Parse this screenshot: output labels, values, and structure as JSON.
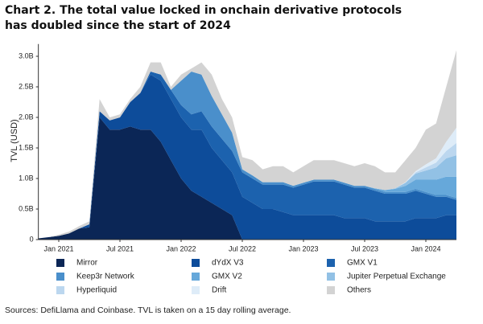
{
  "chart_data": {
    "type": "stacked_area",
    "title": "Chart 2. The total value locked in onchain derivative protocols has doubled since the start of 2024",
    "ylabel": "TVL (USD)",
    "source": "Sources: DefiLlama and Coinbase. TVL is taken on a 15 day rolling average.",
    "x": [
      "2020-11",
      "2020-12",
      "2021-01",
      "2021-02",
      "2021-03",
      "2021-04",
      "2021-05",
      "2021-06",
      "2021-07",
      "2021-08",
      "2021-09",
      "2021-10",
      "2021-11",
      "2021-12",
      "2022-01",
      "2022-02",
      "2022-03",
      "2022-04",
      "2022-05",
      "2022-06",
      "2022-07",
      "2022-08",
      "2022-09",
      "2022-10",
      "2022-11",
      "2022-12",
      "2023-01",
      "2023-02",
      "2023-03",
      "2023-04",
      "2023-05",
      "2023-06",
      "2023-07",
      "2023-08",
      "2023-09",
      "2023-10",
      "2023-11",
      "2023-12",
      "2024-01",
      "2024-02",
      "2024-03",
      "2024-04"
    ],
    "xlim": [
      "2020-11",
      "2024-04"
    ],
    "xticks": [
      {
        "value": "2021-01",
        "label": "Jan 2021"
      },
      {
        "value": "2021-07",
        "label": "Jul 2021"
      },
      {
        "value": "2022-01",
        "label": "Jan 2022"
      },
      {
        "value": "2022-07",
        "label": "Jul 2022"
      },
      {
        "value": "2023-01",
        "label": "Jan 2023"
      },
      {
        "value": "2023-07",
        "label": "Jul 2023"
      },
      {
        "value": "2024-01",
        "label": "Jan 2024"
      }
    ],
    "ylim": [
      0,
      3.2
    ],
    "yticks": [
      0,
      {
        "value": 0.5,
        "label": "0.5B"
      },
      {
        "value": 1,
        "label": "1.0B"
      },
      {
        "value": 1.5,
        "label": "1.5B"
      },
      {
        "value": 2,
        "label": "2.0B"
      },
      {
        "value": 2.5,
        "label": "2.5B"
      },
      {
        "value": 3,
        "label": "3.0B"
      }
    ],
    "series": [
      {
        "name": "Mirror",
        "color": "#0b2656",
        "values": [
          0.02,
          0.04,
          0.06,
          0.1,
          0.18,
          0.2,
          2.0,
          1.8,
          1.8,
          1.85,
          1.8,
          1.8,
          1.6,
          1.3,
          1.0,
          0.8,
          0.7,
          0.6,
          0.5,
          0.4,
          0,
          0,
          0,
          0,
          0,
          0,
          0,
          0,
          0,
          0,
          0,
          0,
          0,
          0,
          0,
          0,
          0,
          0,
          0,
          0,
          0,
          0
        ]
      },
      {
        "name": "dYdX V3",
        "color": "#0d4c9a",
        "values": [
          0,
          0,
          0,
          0,
          0,
          0.05,
          0.1,
          0.15,
          0.2,
          0.4,
          0.6,
          0.9,
          1.0,
          1.0,
          1.0,
          1.0,
          1.1,
          0.9,
          0.8,
          0.7,
          0.7,
          0.6,
          0.5,
          0.5,
          0.45,
          0.4,
          0.4,
          0.4,
          0.4,
          0.4,
          0.35,
          0.35,
          0.35,
          0.3,
          0.3,
          0.3,
          0.3,
          0.35,
          0.35,
          0.35,
          0.4,
          0.4
        ]
      },
      {
        "name": "GMX V1",
        "color": "#1c62ae",
        "values": [
          0,
          0,
          0,
          0,
          0,
          0,
          0,
          0,
          0,
          0,
          0,
          0.05,
          0.1,
          0.15,
          0.2,
          0.25,
          0.3,
          0.35,
          0.35,
          0.35,
          0.4,
          0.4,
          0.4,
          0.4,
          0.45,
          0.45,
          0.5,
          0.55,
          0.55,
          0.55,
          0.55,
          0.5,
          0.5,
          0.5,
          0.45,
          0.45,
          0.45,
          0.45,
          0.4,
          0.35,
          0.3,
          0.25
        ]
      },
      {
        "name": "Keep3r Network",
        "color": "#4a8fcb",
        "values": [
          0,
          0,
          0,
          0,
          0,
          0,
          0,
          0,
          0,
          0,
          0,
          0,
          0,
          0,
          0.4,
          0.7,
          0.6,
          0.5,
          0.4,
          0.3,
          0.05,
          0.05,
          0.04,
          0.04,
          0.04,
          0.03,
          0.03,
          0.03,
          0.03,
          0.03,
          0.03,
          0.03,
          0.03,
          0.03,
          0.03,
          0.03,
          0.03,
          0.03,
          0.03,
          0.03,
          0.03,
          0.03
        ]
      },
      {
        "name": "GMX V2",
        "color": "#66a8da",
        "values": [
          0,
          0,
          0,
          0,
          0,
          0,
          0,
          0,
          0,
          0,
          0,
          0,
          0,
          0,
          0,
          0,
          0,
          0,
          0,
          0,
          0,
          0,
          0,
          0,
          0,
          0,
          0,
          0,
          0,
          0,
          0,
          0,
          0,
          0.01,
          0.03,
          0.05,
          0.1,
          0.15,
          0.2,
          0.25,
          0.3,
          0.35
        ]
      },
      {
        "name": "Jupiter Perpetual Exchange",
        "color": "#92c1e5",
        "values": [
          0,
          0,
          0,
          0,
          0,
          0,
          0,
          0,
          0,
          0,
          0,
          0,
          0,
          0,
          0,
          0,
          0,
          0,
          0,
          0,
          0,
          0,
          0,
          0,
          0,
          0,
          0,
          0,
          0,
          0,
          0,
          0,
          0,
          0,
          0,
          0.01,
          0.05,
          0.1,
          0.15,
          0.2,
          0.3,
          0.35
        ]
      },
      {
        "name": "Hyperliquid",
        "color": "#bcd7ef",
        "values": [
          0,
          0,
          0,
          0,
          0,
          0,
          0,
          0,
          0,
          0,
          0,
          0,
          0,
          0,
          0,
          0,
          0,
          0,
          0,
          0,
          0,
          0,
          0,
          0,
          0,
          0,
          0,
          0,
          0,
          0,
          0,
          0,
          0,
          0,
          0,
          0,
          0,
          0.02,
          0.05,
          0.08,
          0.12,
          0.2
        ]
      },
      {
        "name": "Drift",
        "color": "#deecf8",
        "values": [
          0,
          0,
          0,
          0,
          0,
          0,
          0,
          0,
          0,
          0,
          0,
          0,
          0,
          0,
          0,
          0,
          0,
          0,
          0,
          0,
          0,
          0,
          0,
          0,
          0,
          0,
          0,
          0,
          0,
          0,
          0,
          0,
          0,
          0,
          0,
          0,
          0.01,
          0.02,
          0.05,
          0.07,
          0.15,
          0.25
        ]
      },
      {
        "name": "Others",
        "color": "#d3d3d3",
        "values": [
          0,
          0,
          0.02,
          0.03,
          0.04,
          0.05,
          0.2,
          0.05,
          0.05,
          0.05,
          0.1,
          0.15,
          0.2,
          0.05,
          0.1,
          0.05,
          0.2,
          0.35,
          0.25,
          0.25,
          0.2,
          0.25,
          0.21,
          0.26,
          0.26,
          0.22,
          0.27,
          0.32,
          0.32,
          0.32,
          0.32,
          0.32,
          0.37,
          0.36,
          0.29,
          0.26,
          0.36,
          0.38,
          0.57,
          0.57,
          0.9,
          1.27
        ]
      }
    ]
  }
}
